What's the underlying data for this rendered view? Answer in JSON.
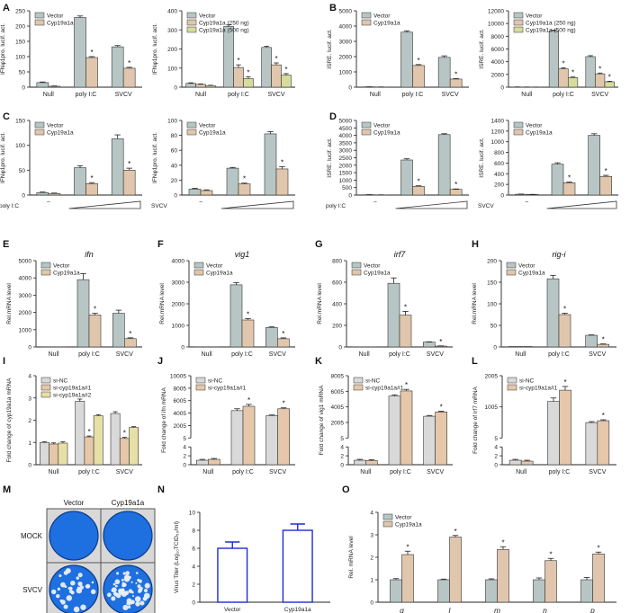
{
  "colors": {
    "vector": "#b7c6c4",
    "cyp": "#e0c6ad",
    "cyp_high": "#d6dc9c",
    "sinc": "#d9d9d9",
    "si1": "#e6c7aa",
    "si2": "#e6e0a6",
    "plate_blue": "#1e6fe0",
    "plate_border": "#555555",
    "titer_line": "#1f2bd6",
    "axis": "#222222"
  },
  "panels": [
    {
      "letter": "A"
    },
    {
      "letter": "B"
    },
    {
      "letter": "C"
    },
    {
      "letter": "D"
    },
    {
      "letter": "E"
    },
    {
      "letter": "F"
    },
    {
      "letter": "G"
    },
    {
      "letter": "H"
    },
    {
      "letter": "I"
    },
    {
      "letter": "J"
    },
    {
      "letter": "K"
    },
    {
      "letter": "L"
    },
    {
      "letter": "M"
    },
    {
      "letter": "N"
    },
    {
      "letter": "O"
    }
  ],
  "plates": {
    "col_labels": [
      "Vector",
      "Cyp19a1a"
    ],
    "row_labels": [
      "MOCK",
      "SVCV"
    ]
  },
  "chart_data": [
    {
      "id": "A1",
      "type": "bar",
      "categories": [
        "Null",
        "poly I:C",
        "SVCV"
      ],
      "ylabel": "IFNφ1pro. lucif. act.",
      "ylim": [
        0,
        250
      ],
      "yticks": [
        0,
        50,
        100,
        150,
        200,
        250
      ],
      "series": [
        {
          "name": "Vector",
          "values": [
            15,
            228,
            132
          ],
          "errors": [
            2,
            5,
            4
          ],
          "color": "vector"
        },
        {
          "name": "Cyp19a1a",
          "values": [
            3,
            97,
            62
          ],
          "errors": [
            1,
            3,
            3
          ],
          "color": "cyp",
          "stars": [
            false,
            true,
            true
          ]
        }
      ]
    },
    {
      "id": "A2",
      "type": "bar",
      "categories": [
        "Null",
        "poly I:C",
        "SVCV"
      ],
      "ylabel": "IFNφ1pro. lucif. act.",
      "ylim": [
        0,
        400
      ],
      "yticks": [
        0,
        100,
        200,
        300,
        400
      ],
      "series": [
        {
          "name": "Vector",
          "values": [
            20,
            318,
            208
          ],
          "errors": [
            3,
            8,
            6
          ],
          "color": "vector"
        },
        {
          "name": "Cyp19a1a (250 ng)",
          "values": [
            15,
            103,
            117
          ],
          "errors": [
            2,
            14,
            10
          ],
          "color": "cyp",
          "stars": [
            false,
            true,
            true
          ]
        },
        {
          "name": "Cyp19a1a (500 ng)",
          "values": [
            8,
            45,
            63
          ],
          "errors": [
            2,
            10,
            8
          ],
          "color": "cyp_high",
          "stars": [
            false,
            true,
            true
          ]
        }
      ]
    },
    {
      "id": "B1",
      "type": "bar",
      "categories": [
        "Null",
        "poly I:C",
        "SVCV"
      ],
      "ylabel": "ISRE. lucif. act.",
      "ylim": [
        0,
        5000
      ],
      "yticks": [
        0,
        1000,
        2000,
        3000,
        4000,
        5000
      ],
      "series": [
        {
          "name": "Vector",
          "values": [
            20,
            3600,
            1950
          ],
          "errors": [
            5,
            90,
            100
          ],
          "color": "vector"
        },
        {
          "name": "Cyp19a1a",
          "values": [
            10,
            1420,
            530
          ],
          "errors": [
            5,
            60,
            40
          ],
          "color": "cyp",
          "stars": [
            false,
            true,
            true
          ]
        }
      ]
    },
    {
      "id": "B2",
      "type": "bar",
      "categories": [
        "Null",
        "poly I:C",
        "SVCV"
      ],
      "ylabel": "ISRE. lucif. act.",
      "ylim": [
        0,
        12000
      ],
      "yticks": [
        0,
        2000,
        4000,
        6000,
        8000,
        10000,
        12000
      ],
      "series": [
        {
          "name": "Vector",
          "values": [
            30,
            8800,
            4800
          ],
          "errors": [
            10,
            150,
            150
          ],
          "color": "vector"
        },
        {
          "name": "Cyp19a1a (250 ng)",
          "values": [
            20,
            2900,
            2100
          ],
          "errors": [
            10,
            150,
            120
          ],
          "color": "cyp",
          "stars": [
            false,
            true,
            true
          ]
        },
        {
          "name": "Cyp19a1a (500 ng)",
          "values": [
            15,
            1500,
            850
          ],
          "errors": [
            5,
            100,
            80
          ],
          "color": "cyp_high",
          "stars": [
            false,
            true,
            true
          ]
        }
      ]
    },
    {
      "id": "C1",
      "type": "bar",
      "categories": [
        "−",
        "",
        ""
      ],
      "treatment": "poly I:C",
      "ramp": true,
      "ylabel": "IFNφ1pro. lucif. act.",
      "ylim": [
        0,
        150
      ],
      "yticks": [
        0,
        50,
        100,
        150
      ],
      "series": [
        {
          "name": "Vector",
          "values": [
            5,
            55,
            113
          ],
          "errors": [
            1,
            4,
            8
          ],
          "color": "vector"
        },
        {
          "name": "Cyp19a1a",
          "values": [
            3,
            23,
            50
          ],
          "errors": [
            1,
            2,
            4
          ],
          "color": "cyp",
          "stars": [
            false,
            true,
            true
          ]
        }
      ]
    },
    {
      "id": "C2",
      "type": "bar",
      "categories": [
        "−",
        "",
        ""
      ],
      "treatment": "SVCV",
      "ramp": true,
      "ylabel": "IFNφ1pro. lucif. act.",
      "ylim": [
        0,
        100
      ],
      "yticks": [
        0,
        20,
        40,
        60,
        80,
        100
      ],
      "series": [
        {
          "name": "Vector",
          "values": [
            8,
            36,
            82
          ],
          "errors": [
            1,
            1,
            3
          ],
          "color": "vector"
        },
        {
          "name": "Cyp19a1a",
          "values": [
            6,
            15,
            35
          ],
          "errors": [
            1,
            1,
            3
          ],
          "color": "cyp",
          "stars": [
            false,
            true,
            true
          ]
        }
      ]
    },
    {
      "id": "D1",
      "type": "bar",
      "categories": [
        "−",
        "",
        ""
      ],
      "treatment": "poly I:C",
      "ramp": true,
      "ylabel": "ISRE. lucif. act.",
      "ylim": [
        0,
        5000
      ],
      "yticks": [
        0,
        500,
        1000,
        1500,
        2000,
        2500,
        3000,
        3500,
        4000,
        4500,
        5000
      ],
      "series": [
        {
          "name": "Vector",
          "values": [
            20,
            2350,
            4050
          ],
          "errors": [
            5,
            80,
            60
          ],
          "color": "vector"
        },
        {
          "name": "Cyp19a1a",
          "values": [
            10,
            580,
            380
          ],
          "errors": [
            5,
            40,
            30
          ],
          "color": "cyp",
          "stars": [
            false,
            true,
            true
          ]
        }
      ]
    },
    {
      "id": "D2",
      "type": "bar",
      "categories": [
        "−",
        "",
        ""
      ],
      "treatment": "SVCV",
      "ramp": true,
      "ylabel": "ISRE. lucif. act.",
      "ylim": [
        0,
        1400
      ],
      "yticks": [
        0,
        200,
        400,
        600,
        800,
        1000,
        1200,
        1400
      ],
      "series": [
        {
          "name": "Vector",
          "values": [
            15,
            580,
            1120
          ],
          "errors": [
            3,
            25,
            30
          ],
          "color": "vector"
        },
        {
          "name": "Cyp19a1a",
          "values": [
            10,
            230,
            350
          ],
          "errors": [
            3,
            15,
            20
          ],
          "color": "cyp",
          "stars": [
            false,
            true,
            true
          ]
        }
      ]
    },
    {
      "id": "E",
      "type": "bar",
      "title": "ifn",
      "categories": [
        "Null",
        "poly I:C",
        "SVCV"
      ],
      "ylabel": "Rel.mRNA level",
      "ylim": [
        0,
        5000
      ],
      "yticks": [
        0,
        1000,
        2000,
        3000,
        4000,
        5000
      ],
      "series": [
        {
          "name": "Vector",
          "values": [
            1,
            3900,
            1950
          ],
          "errors": [
            0,
            350,
            180
          ],
          "color": "vector"
        },
        {
          "name": "Cyp19a1a",
          "values": [
            1,
            1850,
            480
          ],
          "errors": [
            0,
            100,
            50
          ],
          "color": "cyp",
          "stars": [
            false,
            true,
            true
          ]
        }
      ]
    },
    {
      "id": "F",
      "type": "bar",
      "title": "vig1",
      "categories": [
        "Null",
        "poly I:C",
        "SVCV"
      ],
      "ylabel": "Rel.mRNA level",
      "ylim": [
        0,
        4000
      ],
      "yticks": [
        0,
        1000,
        2000,
        3000,
        4000
      ],
      "series": [
        {
          "name": "Vector",
          "values": [
            1,
            2880,
            900
          ],
          "errors": [
            0,
            100,
            30
          ],
          "color": "vector"
        },
        {
          "name": "Cyp19a1a",
          "values": [
            1,
            1250,
            380
          ],
          "errors": [
            0,
            60,
            40
          ],
          "color": "cyp",
          "stars": [
            false,
            true,
            true
          ]
        }
      ]
    },
    {
      "id": "G",
      "type": "bar",
      "title": "irf7",
      "categories": [
        "Null",
        "poly I:C",
        "SVCV"
      ],
      "ylabel": "Rel.mRNA level",
      "ylim": [
        0,
        800
      ],
      "yticks": [
        0,
        200,
        400,
        600,
        800
      ],
      "series": [
        {
          "name": "Vector",
          "values": [
            1,
            590,
            45
          ],
          "errors": [
            0,
            50,
            3
          ],
          "color": "vector"
        },
        {
          "name": "Cyp19a1a",
          "values": [
            1,
            295,
            8
          ],
          "errors": [
            0,
            35,
            2
          ],
          "color": "cyp",
          "stars": [
            false,
            true,
            true
          ]
        }
      ]
    },
    {
      "id": "H",
      "type": "bar",
      "title": "rig-i",
      "categories": [
        "Null",
        "poly I:C",
        "SVCV"
      ],
      "ylabel": "Rel.mRNA level",
      "ylim": [
        0,
        200
      ],
      "yticks": [
        0,
        50,
        100,
        150,
        200
      ],
      "series": [
        {
          "name": "Vector",
          "values": [
            1,
            158,
            27
          ],
          "errors": [
            0,
            8,
            1
          ],
          "color": "vector"
        },
        {
          "name": "Cyp19a1a",
          "values": [
            1,
            75,
            6
          ],
          "errors": [
            0,
            3,
            1
          ],
          "color": "cyp",
          "stars": [
            false,
            true,
            true
          ]
        }
      ]
    },
    {
      "id": "I",
      "type": "bar",
      "categories": [
        "Null",
        "poly I:C",
        "SVCV"
      ],
      "ylabel": "Fold change of cyp19a1a mRNA",
      "ylim": [
        0,
        4
      ],
      "yticks": [
        0,
        1,
        2,
        3,
        4
      ],
      "series": [
        {
          "name": "si-NC",
          "values": [
            1.0,
            2.85,
            2.3
          ],
          "errors": [
            0.03,
            0.1,
            0.08
          ],
          "color": "sinc"
        },
        {
          "name": "si-cyp19a1a#1",
          "values": [
            0.93,
            1.25,
            1.18
          ],
          "errors": [
            0.05,
            0.04,
            0.05
          ],
          "color": "si1",
          "stars": [
            false,
            true,
            true
          ]
        },
        {
          "name": "si-cyp19a1a#2",
          "values": [
            0.97,
            2.2,
            1.67
          ],
          "errors": [
            0.06,
            0.05,
            0.04
          ],
          "color": "si2"
        }
      ]
    },
    {
      "id": "J",
      "type": "bar",
      "broken_axis": true,
      "categories": [
        "Null",
        "poly I:C",
        "SVCV"
      ],
      "ylabel": "Fold change of ifn mRNA",
      "lower_ticks": [
        0,
        2,
        4
      ],
      "upper_ticks": [
        5,
        2005,
        4005,
        6005,
        8005,
        10005
      ],
      "series": [
        {
          "name": "si-NC",
          "values": [
            1,
            4400,
            3600
          ],
          "errors": [
            0.2,
            300,
            100
          ],
          "color": "sinc"
        },
        {
          "name": "si-cyp19a1a#1",
          "values": [
            1.2,
            5100,
            4700
          ],
          "errors": [
            0.2,
            300,
            150
          ],
          "color": "si1",
          "stars": [
            false,
            true,
            true
          ]
        }
      ]
    },
    {
      "id": "K",
      "type": "bar",
      "broken_axis": true,
      "categories": [
        "Null",
        "poly I:C",
        "SVCV"
      ],
      "ylabel": "Fold change of vig1 mRNA",
      "lower_ticks": [
        0,
        2,
        4
      ],
      "upper_ticks": [
        5,
        2005,
        4005,
        6005,
        8005
      ],
      "series": [
        {
          "name": "si-NC",
          "values": [
            1,
            5400,
            2800
          ],
          "errors": [
            0.2,
            150,
            100
          ],
          "color": "sinc"
        },
        {
          "name": "si-cyp19a1a#1",
          "values": [
            0.9,
            6050,
            3350
          ],
          "errors": [
            0.2,
            200,
            100
          ],
          "color": "si1",
          "stars": [
            false,
            true,
            true
          ]
        }
      ]
    },
    {
      "id": "L",
      "type": "bar",
      "broken_axis": true,
      "categories": [
        "Null",
        "poly I:C",
        "SVCV"
      ],
      "ylabel": "Fold change of irf7 mRNA",
      "lower_ticks": [
        0,
        2,
        4
      ],
      "upper_ticks": [
        5,
        1005,
        2005
      ],
      "series": [
        {
          "name": "si-NC",
          "values": [
            1,
            1180,
            500
          ],
          "errors": [
            0.2,
            110,
            30
          ],
          "color": "sinc"
        },
        {
          "name": "si-cyp19a1a#1",
          "values": [
            0.8,
            1540,
            560
          ],
          "errors": [
            0.2,
            120,
            30
          ],
          "color": "si1",
          "stars": [
            false,
            true,
            true
          ]
        }
      ]
    },
    {
      "id": "N",
      "type": "bar",
      "style": "outline",
      "categories": [
        "Vector",
        "Cyp19a1a"
      ],
      "ylabel": "Virus Titer (Log₁₀TCID₅₀/ml)",
      "ylim": [
        0,
        10
      ],
      "yticks": [
        0,
        2,
        4,
        6,
        8,
        10
      ],
      "series": [
        {
          "values": [
            6.0,
            8.0
          ],
          "errors": [
            0.7,
            0.7
          ],
          "color": "titer_line"
        }
      ]
    },
    {
      "id": "O",
      "type": "bar",
      "italic_categories": true,
      "categories": [
        "g",
        "l",
        "m",
        "n",
        "p"
      ],
      "ylabel": "Rel. mRNA level",
      "ylim": [
        0,
        4
      ],
      "yticks": [
        0,
        1,
        2,
        3,
        4
      ],
      "series": [
        {
          "name": "Vector",
          "values": [
            1.0,
            1.0,
            1.0,
            1.0,
            1.0
          ],
          "errors": [
            0.05,
            0.03,
            0.04,
            0.08,
            0.1
          ],
          "color": "vector"
        },
        {
          "name": "Cyp19a1a",
          "values": [
            2.12,
            2.9,
            2.35,
            1.85,
            2.15
          ],
          "errors": [
            0.15,
            0.07,
            0.12,
            0.1,
            0.08
          ],
          "color": "cyp",
          "stars": [
            true,
            true,
            true,
            true,
            true
          ]
        }
      ]
    }
  ]
}
